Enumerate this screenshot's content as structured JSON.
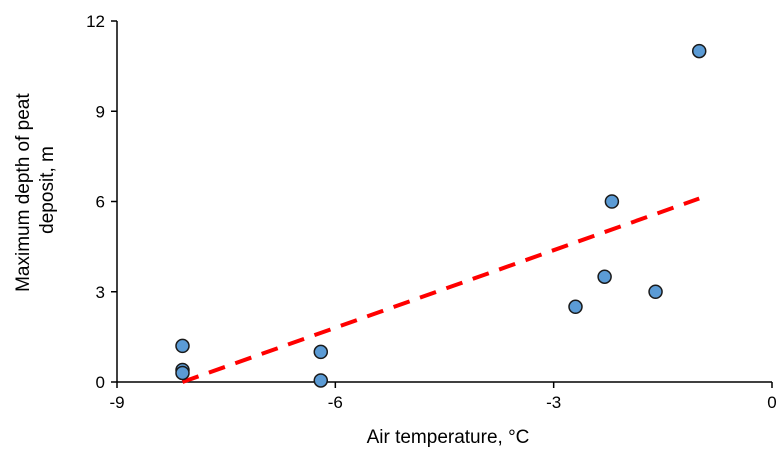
{
  "chart_data": {
    "type": "scatter",
    "title": "",
    "xlabel": "Air temperature, °C",
    "ylabel_lines": [
      "Maximum depth of peat",
      "deposit, m"
    ],
    "xlim": [
      -9,
      0
    ],
    "ylim": [
      0,
      12
    ],
    "x_ticks": [
      -9,
      -6,
      -3,
      0
    ],
    "y_ticks": [
      0,
      3,
      6,
      9,
      12
    ],
    "x_tick_labels": [
      "-9",
      "-6",
      "-3",
      "0"
    ],
    "y_tick_labels": [
      "0",
      "3",
      "6",
      "9",
      "12"
    ],
    "grid": false,
    "legend": "none",
    "series": [
      {
        "points": [
          {
            "x": -8.1,
            "y": 1.2
          },
          {
            "x": -8.1,
            "y": 0.4
          },
          {
            "x": -8.1,
            "y": 0.3
          },
          {
            "x": -6.2,
            "y": 1.0
          },
          {
            "x": -6.2,
            "y": 0.05
          },
          {
            "x": -2.7,
            "y": 2.5
          },
          {
            "x": -2.3,
            "y": 3.5
          },
          {
            "x": -2.2,
            "y": 6.0
          },
          {
            "x": -1.6,
            "y": 3.0
          },
          {
            "x": -1.0,
            "y": 11.0
          }
        ],
        "marker_color": "#5b9bd5",
        "marker_edge_color": "#1a1a1a"
      }
    ],
    "trendline": {
      "style": "dashed",
      "color": "#ff0000",
      "x_start": -8.1,
      "y_start": 0.0,
      "x_end": -1.0,
      "y_end": 6.1
    }
  }
}
